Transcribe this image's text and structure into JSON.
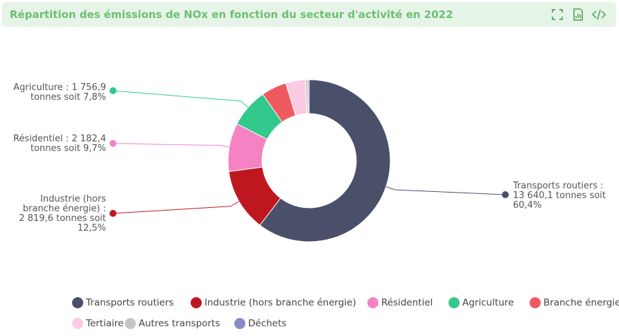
{
  "header": {
    "title": "Répartition des émissions de NOx en fonction du secteur d'activité en 2022",
    "tools": [
      {
        "name": "fullscreen-icon"
      },
      {
        "name": "spreadsheet-icon"
      },
      {
        "name": "code-icon"
      }
    ]
  },
  "colors": {
    "header_bg": "#e6f4e8",
    "title": "#6cbf72",
    "icon": "#5cae63"
  },
  "chart_data": {
    "type": "pie",
    "donut": true,
    "title": "Répartition des émissions de NOx en fonction du secteur d'activité en 2022",
    "legend_position": "bottom",
    "slices": [
      {
        "name": "Transports routiers",
        "value": 13640.1,
        "percent": 60.4,
        "color": "#4a5069",
        "label_lines": [
          "Transports routiers :",
          "13 640,1 tonnes soit",
          "60,4%"
        ]
      },
      {
        "name": "Industrie (hors branche énergie)",
        "value": 2819.6,
        "percent": 12.5,
        "color": "#bf1720",
        "label_lines": [
          "Industrie (hors",
          "branche énergie) :",
          "2 819,6 tonnes soit",
          "12,5%"
        ]
      },
      {
        "name": "Résidentiel",
        "value": 2182.4,
        "percent": 9.7,
        "color": "#f583c3",
        "label_lines": [
          "Résidentiel : 2 182,4",
          "tonnes soit 9,7%"
        ]
      },
      {
        "name": "Agriculture",
        "value": 1756.9,
        "percent": 7.8,
        "color": "#34c98c",
        "label_lines": [
          "Agriculture : 1 756,9",
          "tonnes soit 7,8%"
        ]
      },
      {
        "name": "Branche énergie",
        "value": 1140,
        "color": "#ef5a60"
      },
      {
        "name": "Tertiaire",
        "value": 880,
        "color": "#fccbe3"
      },
      {
        "name": "Autres transports",
        "value": 110,
        "color": "#c8c3c9"
      },
      {
        "name": "Déchets",
        "value": 60,
        "color": "#8c88c8"
      }
    ]
  }
}
